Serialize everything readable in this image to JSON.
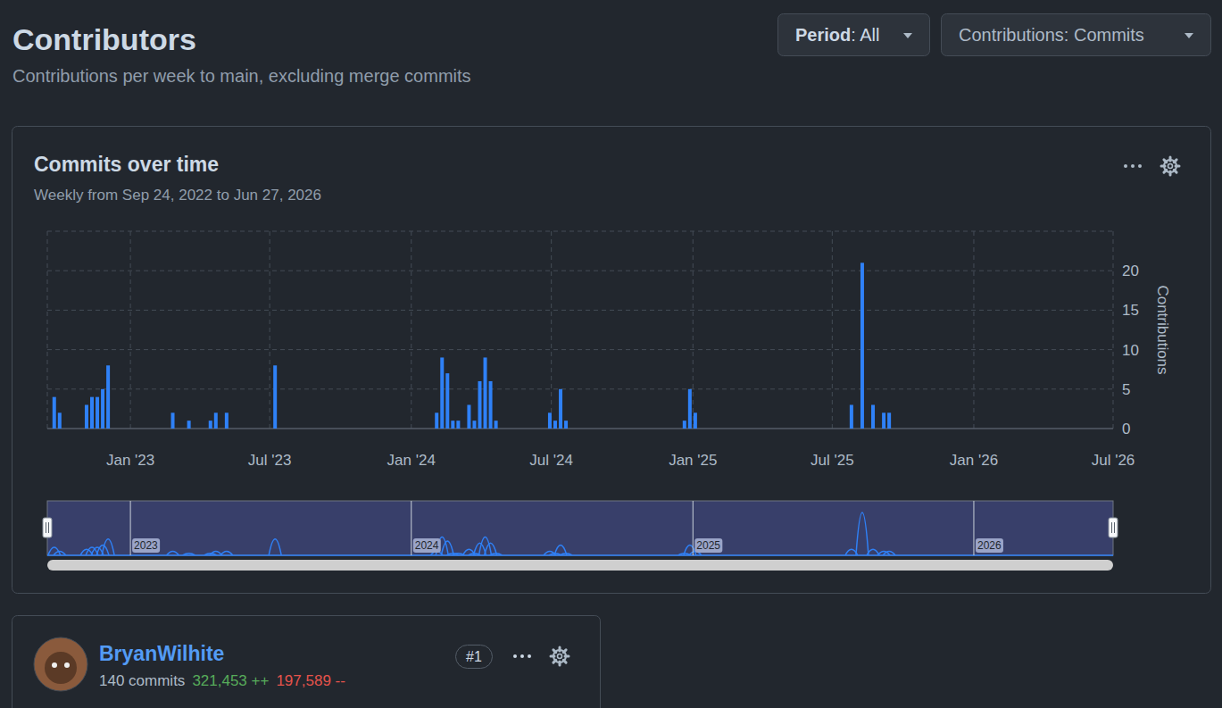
{
  "header": {
    "title": "Contributors",
    "subtitle": "Contributions per week to main, excluding merge commits",
    "period": {
      "label": "Period",
      "value": ": All"
    },
    "contributions": "Contributions: Commits"
  },
  "chart_data": {
    "type": "bar",
    "title": "Commits over time",
    "subtitle": "Weekly from Sep 24, 2022 to Jun 27, 2026",
    "y_label": "Contributions",
    "x": [
      "2022-09-24",
      "2022-10-01",
      "2022-11-05",
      "2022-11-12",
      "2022-11-19",
      "2022-11-26",
      "2022-12-03",
      "2023-02-25",
      "2023-03-18",
      "2023-04-15",
      "2023-04-22",
      "2023-05-06",
      "2023-07-08",
      "2024-02-03",
      "2024-02-10",
      "2024-02-17",
      "2024-02-24",
      "2024-03-02",
      "2024-03-16",
      "2024-03-23",
      "2024-03-30",
      "2024-04-06",
      "2024-04-13",
      "2024-04-20",
      "2024-06-29",
      "2024-07-06",
      "2024-07-13",
      "2024-07-20",
      "2024-12-21",
      "2024-12-28",
      "2025-01-04",
      "2025-07-26",
      "2025-08-09",
      "2025-08-23",
      "2025-09-06",
      "2025-09-13"
    ],
    "values": [
      4,
      2,
      3,
      4,
      4,
      5,
      8,
      2,
      1,
      1,
      2,
      2,
      8,
      2,
      9,
      7,
      1,
      1,
      3,
      1,
      6,
      9,
      6,
      1,
      2,
      1,
      5,
      1,
      1,
      5,
      2,
      3,
      21,
      3,
      2,
      2
    ],
    "color": "#2f81f7",
    "xlim": [
      "2022-09-15",
      "2026-07-01"
    ],
    "xticks": [
      {
        "value": "2023-01-01",
        "label": "Jan '23"
      },
      {
        "value": "2023-07-01",
        "label": "Jul '23"
      },
      {
        "value": "2024-01-01",
        "label": "Jan '24"
      },
      {
        "value": "2024-07-01",
        "label": "Jul '24"
      },
      {
        "value": "2025-01-01",
        "label": "Jan '25"
      },
      {
        "value": "2025-07-01",
        "label": "Jul '25"
      },
      {
        "value": "2026-01-01",
        "label": "Jan '26"
      },
      {
        "value": "2026-07-01",
        "label": "Jul '26"
      }
    ],
    "ylim": [
      0,
      25
    ],
    "yticks": [
      0,
      5,
      10,
      15,
      20
    ],
    "grid": true
  },
  "navigator": {
    "xticks": [
      {
        "value": "2023-01-01",
        "label": "2023"
      },
      {
        "value": "2024-01-01",
        "label": "2024"
      },
      {
        "value": "2025-01-01",
        "label": "2025"
      },
      {
        "value": "2026-01-01",
        "label": "2026"
      }
    ]
  },
  "contributors": [
    {
      "name": "BryanWilhite",
      "commits": "140 commits",
      "additions": "321,453 ++",
      "deletions": "197,589 --",
      "rank": "#1"
    }
  ]
}
